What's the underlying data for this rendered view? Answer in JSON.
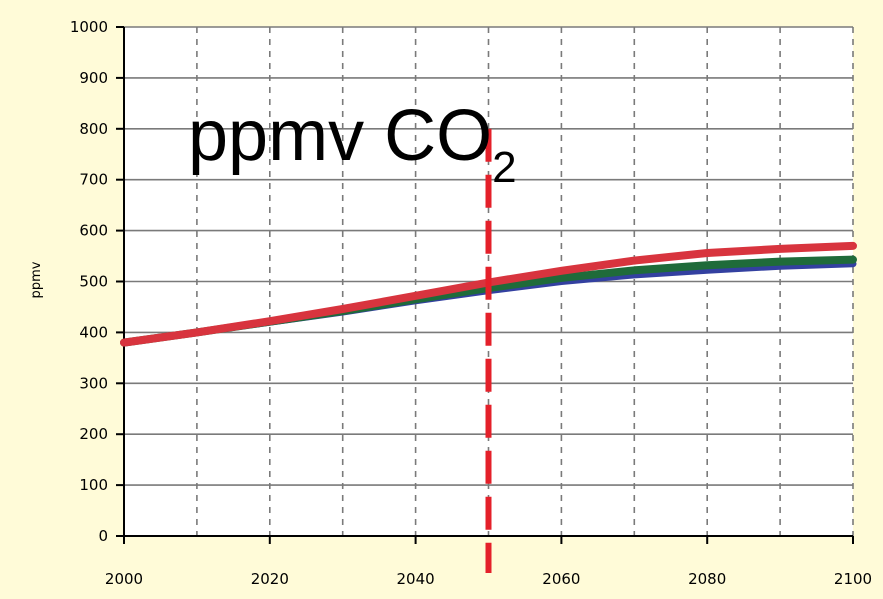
{
  "chart_data": {
    "type": "line",
    "title": "ppmv CO",
    "title_subscript": "2",
    "ylabel": "ppmv",
    "xlabel": "",
    "xlim": [
      2000,
      2100
    ],
    "ylim": [
      0,
      1000
    ],
    "x_ticks": [
      2000,
      2020,
      2040,
      2060,
      2080,
      2100
    ],
    "y_ticks": [
      0,
      100,
      200,
      300,
      400,
      500,
      600,
      700,
      800,
      900,
      1000
    ],
    "x_minor_gridlines": [
      2010,
      2030,
      2050,
      2070,
      2090
    ],
    "grid": true,
    "x": [
      2000,
      2010,
      2020,
      2030,
      2040,
      2050,
      2060,
      2070,
      2080,
      2090,
      2100
    ],
    "series": [
      {
        "color": "#3340a0",
        "values": [
          380,
          400,
          420,
          440,
          462,
          482,
          500,
          513,
          522,
          530,
          535
        ]
      },
      {
        "color": "#1f6b3a",
        "values": [
          380,
          400,
          421,
          442,
          465,
          487,
          507,
          522,
          532,
          539,
          543
        ]
      },
      {
        "color": "#d8343e",
        "values": [
          380,
          400,
          422,
          446,
          472,
          498,
          521,
          541,
          556,
          564,
          570
        ]
      }
    ],
    "marker_line": {
      "x": 2050,
      "y_range": [
        0,
        800
      ],
      "color": "#e4202a",
      "style": "dashed"
    },
    "colors": {
      "background": "#fffbd8",
      "plot_background": "#ffffff",
      "grid": "#7a7a7a"
    }
  }
}
